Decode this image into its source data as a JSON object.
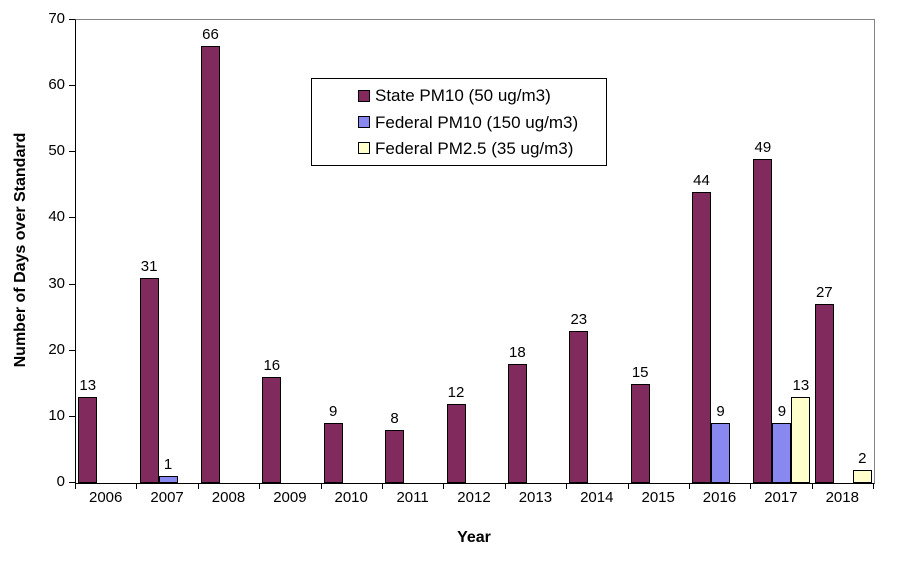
{
  "chart_data": {
    "type": "bar",
    "title": "",
    "xlabel": "Year",
    "ylabel": "Number of Days over Standard",
    "categories": [
      "2006",
      "2007",
      "2008",
      "2009",
      "2010",
      "2011",
      "2012",
      "2013",
      "2014",
      "2015",
      "2016",
      "2017",
      "2018"
    ],
    "series": [
      {
        "name": "State PM10 (50 ug/m3)",
        "color": "#802A5E",
        "values": [
          13,
          31,
          66,
          16,
          9,
          8,
          12,
          18,
          23,
          15,
          44,
          49,
          27
        ]
      },
      {
        "name": "Federal PM10 (150 ug/m3)",
        "color": "#8888F0",
        "values": [
          null,
          1,
          null,
          null,
          null,
          null,
          null,
          null,
          null,
          null,
          9,
          9,
          null
        ]
      },
      {
        "name": "Federal PM2.5 (35 ug/m3)",
        "color": "#FFFFCC",
        "values": [
          null,
          null,
          null,
          null,
          null,
          null,
          null,
          null,
          null,
          null,
          null,
          13,
          2
        ]
      }
    ],
    "ylim": [
      0,
      70
    ],
    "yticks": [
      0,
      10,
      20,
      30,
      40,
      50,
      60,
      70
    ],
    "grid": false,
    "bar_value_labels": true,
    "legend_position": "inside-upper-center",
    "axis_color": "#000000",
    "plot_border_color": "#848484",
    "background_color": "#FFFFFF"
  }
}
